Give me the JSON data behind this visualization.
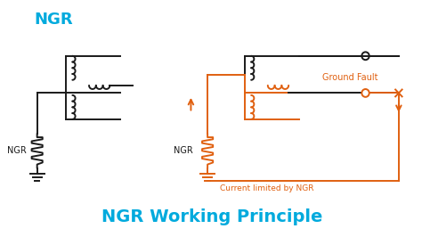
{
  "title": "NGR Working Principle",
  "title_color": "#00AADD",
  "title_fontsize": 14,
  "background_color": "#ffffff",
  "left_label": "NGR",
  "left_title": "NGR",
  "right_ngr_label": "NGR",
  "ground_fault_label": "Ground Fault",
  "current_label": "Current limited by NGR",
  "black_color": "#1a1a1a",
  "orange_color": "#E06010",
  "cyan_color": "#00AADD"
}
